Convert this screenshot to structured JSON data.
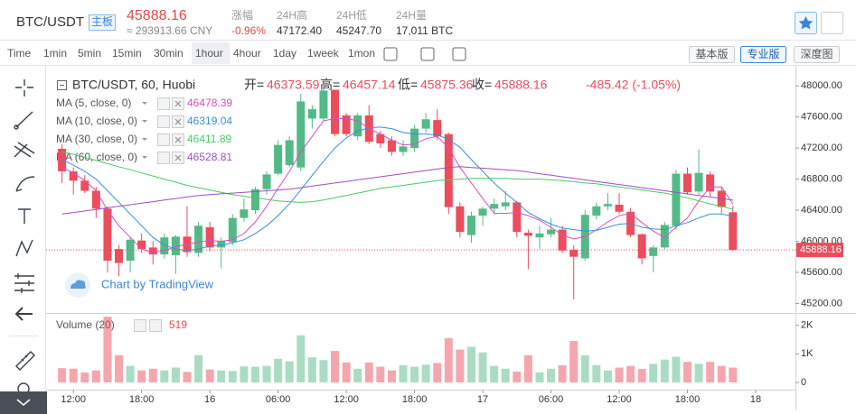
{
  "header": {
    "symbol": "BTC/USDT",
    "badge": "主板",
    "last": "45888.16",
    "cny": "≈ 293913.66 CNY",
    "stats": [
      {
        "label": "涨幅",
        "value": "-0.96%"
      },
      {
        "label": "24H高",
        "value": "47172.40"
      },
      {
        "label": "24H低",
        "value": "45247.70"
      },
      {
        "label": "24H量",
        "value": "17,011 BTC"
      }
    ]
  },
  "toolbar": {
    "intervals": [
      "Time",
      "1min",
      "5min",
      "15min",
      "30min",
      "1hour",
      "4hour",
      "1day",
      "1week",
      "1mon"
    ],
    "active": 5,
    "versions": [
      "基本版",
      "专业版",
      "深度图"
    ],
    "active_version": 1
  },
  "chart_data": {
    "type": "candlestick",
    "title": "BTC/USDT, 60, Huobi",
    "ohlc_labels": [
      "开=",
      "高=",
      "低=",
      "收="
    ],
    "change": "-485.42 (-1.05%)",
    "watermark": "Chart by TradingView",
    "up_color": "#53b987",
    "down_color": "#eb4d5c",
    "open": [
      47190,
      46900,
      46780,
      46650,
      46420,
      45900,
      45750,
      46010,
      45920,
      45830,
      45820,
      46060,
      45850,
      46180,
      45920,
      45990,
      46300,
      46400,
      46670,
      46870,
      46980,
      46950,
      47580,
      47580,
      47950,
      47620,
      47350,
      47620,
      47380,
      47300,
      47150,
      47200,
      47450,
      47560,
      47380,
      46450,
      46080,
      46330,
      46420,
      46450,
      46500,
      46110,
      46050,
      46090,
      46150,
      45890,
      45780,
      46330,
      46450,
      46470,
      46380,
      46090,
      45810,
      45920,
      46200,
      46870,
      46640,
      46860,
      46650,
      46373.59
    ],
    "high": [
      47250,
      46950,
      46850,
      46700,
      46450,
      45950,
      46050,
      46100,
      46000,
      46100,
      46080,
      46450,
      46250,
      46250,
      46050,
      46350,
      46550,
      46700,
      46900,
      47300,
      47350,
      47900,
      47750,
      48000,
      47950,
      47650,
      47650,
      47750,
      47420,
      47350,
      47300,
      47500,
      47650,
      47700,
      47400,
      46500,
      46380,
      46450,
      46550,
      46650,
      46520,
      46150,
      46200,
      46300,
      46200,
      45950,
      46400,
      46500,
      46620,
      46620,
      46430,
      46100,
      45950,
      46250,
      46920,
      46950,
      47180,
      46900,
      46700,
      46457.14
    ],
    "low": [
      46750,
      46600,
      46620,
      46300,
      45600,
      45550,
      45600,
      45850,
      45700,
      45780,
      45580,
      45800,
      45800,
      45870,
      45650,
      45950,
      46250,
      46350,
      46600,
      46850,
      46950,
      46900,
      47450,
      47550,
      47350,
      47350,
      47300,
      47250,
      47200,
      47100,
      47100,
      47150,
      47400,
      47300,
      46350,
      46050,
      45980,
      46200,
      46350,
      46400,
      46050,
      45640,
      45900,
      46050,
      45850,
      45250,
      45750,
      46280,
      46400,
      46350,
      46050,
      45700,
      45600,
      45900,
      46150,
      46600,
      46600,
      46580,
      46360,
      45875.36
    ],
    "close": [
      46900,
      46780,
      46650,
      46420,
      45750,
      45720,
      46020,
      45900,
      45830,
      46050,
      46060,
      45860,
      46200,
      45920,
      46000,
      46300,
      46410,
      46670,
      46860,
      47240,
      47300,
      47800,
      47700,
      47940,
      47380,
      47380,
      47620,
      47280,
      47260,
      47150,
      47220,
      47450,
      47570,
      47350,
      46440,
      46120,
      46330,
      46420,
      46480,
      46500,
      46120,
      46070,
      46100,
      46150,
      45880,
      45800,
      46340,
      46450,
      46480,
      46380,
      46080,
      45780,
      45920,
      46210,
      46870,
      46630,
      46880,
      46640,
      46440,
      45888.16
    ],
    "ylim": [
      45100,
      48200
    ],
    "yticks": [
      {
        "value": 45200,
        "label": "45200.00"
      },
      {
        "value": 45600,
        "label": "45600.00"
      },
      {
        "value": 46000,
        "label": "46000.00"
      },
      {
        "value": 46400,
        "label": "46400.00"
      },
      {
        "value": 46800,
        "label": "46800.00"
      },
      {
        "value": 47200,
        "label": "47200.00"
      },
      {
        "value": 47600,
        "label": "47600.00"
      },
      {
        "value": 48000,
        "label": "48000.00"
      }
    ],
    "xlim": [
      -1.4,
      64.5
    ],
    "xticks": [
      {
        "value": 1,
        "label": "12:00"
      },
      {
        "value": 7,
        "label": "18:00"
      },
      {
        "value": 13,
        "label": "16"
      },
      {
        "value": 19,
        "label": "06:00"
      },
      {
        "value": 25,
        "label": "12:00"
      },
      {
        "value": 31,
        "label": "18:00"
      },
      {
        "value": 37,
        "label": "17"
      },
      {
        "value": 43,
        "label": "06:00"
      },
      {
        "value": 49,
        "label": "12:00"
      },
      {
        "value": 55,
        "label": "18:00"
      },
      {
        "value": 61,
        "label": "18"
      }
    ],
    "grid": false,
    "series": [
      {
        "name": "MA (5, close, 0)",
        "color": "#d94fc4",
        "values": [
          46950,
          46880,
          46780,
          46650,
          46400,
          46200,
          46050,
          45900,
          45850,
          45880,
          45930,
          45960,
          45990,
          46010,
          46000,
          46020,
          46100,
          46250,
          46450,
          46680,
          46900,
          47150,
          47350,
          47550,
          47580,
          47580,
          47550,
          47450,
          47380,
          47300,
          47240,
          47250,
          47320,
          47350,
          47200,
          46950,
          46750,
          46550,
          46360,
          46360,
          46370,
          46330,
          46270,
          46180,
          46080,
          46030,
          46060,
          46150,
          46250,
          46330,
          46360,
          46240,
          46130,
          46050,
          46180,
          46300,
          46520,
          46700,
          46700,
          46478.39
        ]
      },
      {
        "name": "MA (10, close, 0)",
        "color": "#3c8ddc",
        "values": [
          47050,
          46980,
          46900,
          46800,
          46650,
          46500,
          46350,
          46200,
          46050,
          45950,
          45900,
          45880,
          45900,
          45940,
          45950,
          45980,
          46020,
          46100,
          46200,
          46330,
          46480,
          46660,
          46850,
          47030,
          47200,
          47330,
          47420,
          47460,
          47470,
          47450,
          47400,
          47380,
          47380,
          47370,
          47310,
          47210,
          47050,
          46900,
          46750,
          46620,
          46500,
          46370,
          46290,
          46220,
          46170,
          46150,
          46130,
          46140,
          46180,
          46220,
          46230,
          46180,
          46160,
          46150,
          46200,
          46240,
          46300,
          46350,
          46350,
          46319.04
        ]
      },
      {
        "name": "MA (30, close, 0)",
        "color": "#4cc767",
        "values": [
          47150,
          47120,
          47080,
          47040,
          47000,
          46960,
          46920,
          46880,
          46840,
          46800,
          46760,
          46720,
          46690,
          46660,
          46630,
          46600,
          46580,
          46560,
          46540,
          46520,
          46510,
          46500,
          46510,
          46530,
          46560,
          46590,
          46620,
          46650,
          46680,
          46700,
          46720,
          46740,
          46760,
          46780,
          46790,
          46800,
          46810,
          46810,
          46810,
          46810,
          46800,
          46800,
          46800,
          46790,
          46780,
          46770,
          46750,
          46740,
          46720,
          46700,
          46680,
          46660,
          46640,
          46620,
          46590,
          46560,
          46520,
          46480,
          46450,
          46411.89
        ]
      },
      {
        "name": "MA (60, close, 0)",
        "color": "#9c4fbf",
        "values": [
          46350,
          46370,
          46390,
          46410,
          46430,
          46450,
          46470,
          46490,
          46510,
          46530,
          46550,
          46570,
          46590,
          46600,
          46610,
          46620,
          46630,
          46640,
          46650,
          46660,
          46670,
          46690,
          46710,
          46730,
          46750,
          46770,
          46790,
          46810,
          46830,
          46850,
          46870,
          46890,
          46910,
          46930,
          46950,
          46960,
          46950,
          46940,
          46930,
          46920,
          46910,
          46890,
          46870,
          46850,
          46830,
          46810,
          46790,
          46770,
          46750,
          46730,
          46710,
          46690,
          46670,
          46650,
          46630,
          46610,
          46590,
          46570,
          46550,
          46528.81
        ]
      }
    ],
    "volume": {
      "name": "Volume (20)",
      "values": [
        500,
        480,
        350,
        420,
        2300,
        950,
        580,
        420,
        480,
        420,
        520,
        370,
        950,
        450,
        420,
        400,
        560,
        550,
        580,
        830,
        740,
        1650,
        880,
        780,
        1100,
        700,
        480,
        700,
        550,
        420,
        600,
        550,
        620,
        680,
        1550,
        1150,
        1250,
        1050,
        580,
        480,
        380,
        950,
        350,
        480,
        600,
        1450,
        950,
        600,
        420,
        520,
        580,
        470,
        650,
        800,
        900,
        720,
        650,
        720,
        580,
        519
      ],
      "ylim": [
        0,
        2400
      ],
      "yticks": [
        0,
        {
          "value": 1000,
          "label": "1K"
        },
        {
          "value": 2000,
          "label": "2K"
        }
      ]
    }
  }
}
